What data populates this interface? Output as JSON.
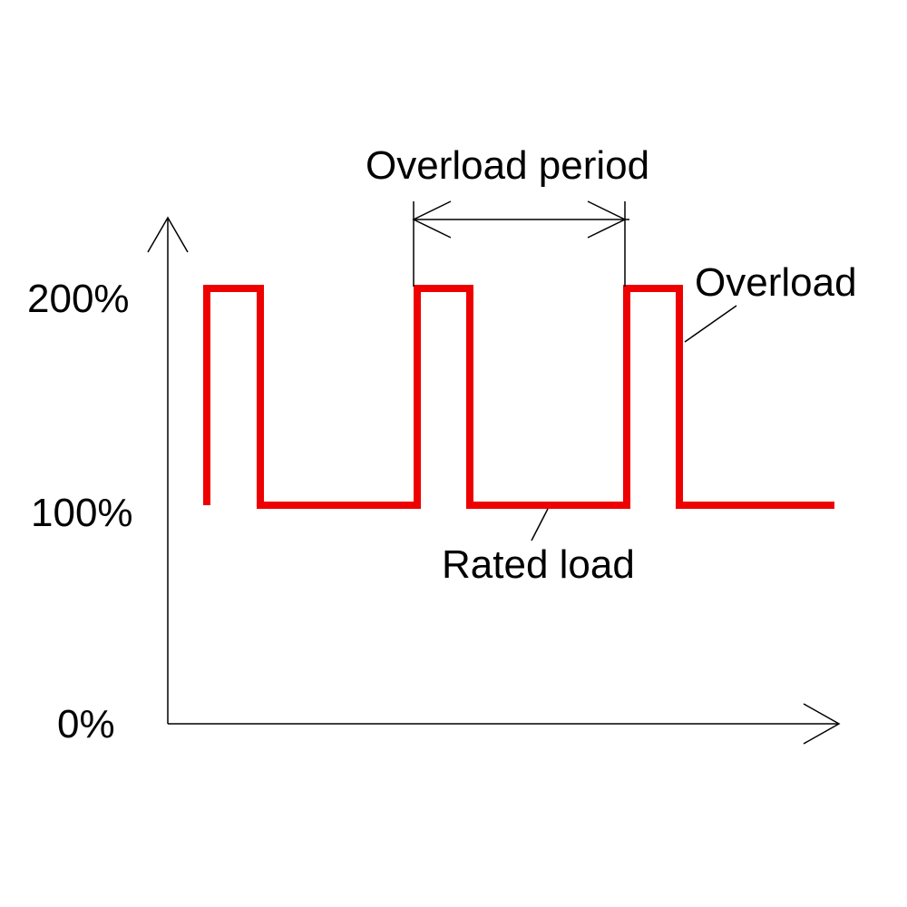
{
  "labels": {
    "overload_period": "Overload period",
    "overload": "Overload",
    "rated_load": "Rated load"
  },
  "y_ticks": [
    "200%",
    "100%",
    "0%"
  ],
  "colors": {
    "load_line": "#ee0000",
    "axis": "#000000",
    "background": "#ffffff"
  }
}
